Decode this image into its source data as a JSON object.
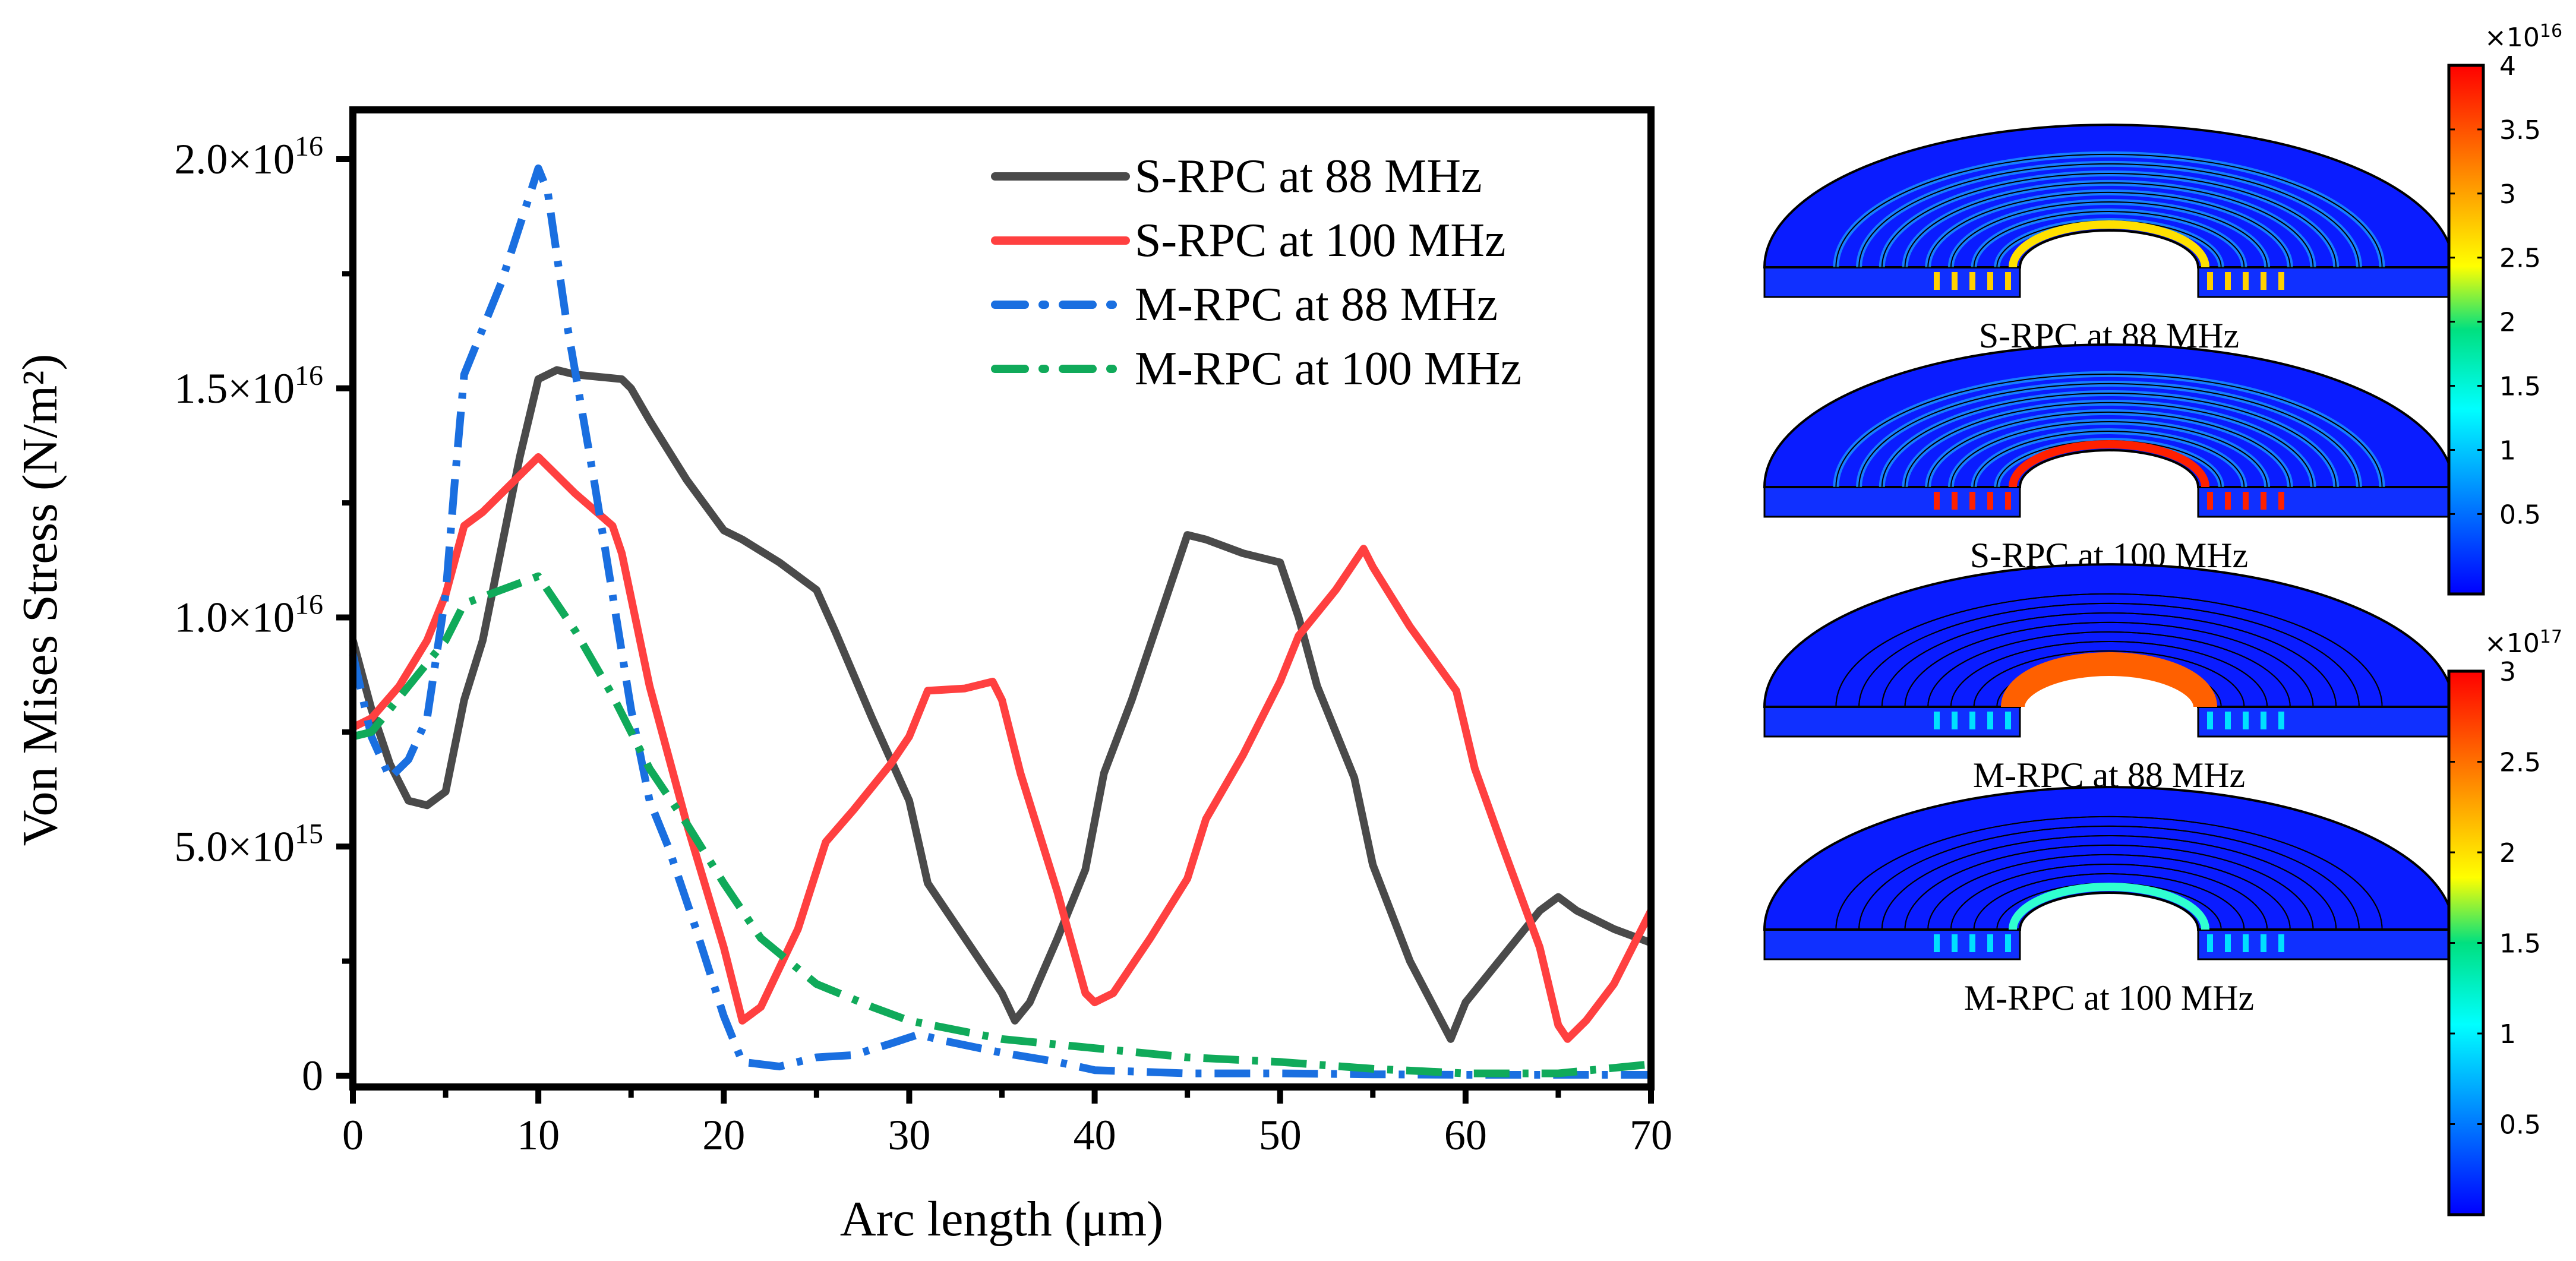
{
  "chart_data": [
    {
      "type": "line",
      "xlabel": "Arc length (μm)",
      "ylabel": "Von Mises Stress (N/m²)",
      "xlim": [
        0,
        70
      ],
      "ylim": [
        0,
        2e+16
      ],
      "x_ticks": [
        "0",
        "10",
        "20",
        "30",
        "40",
        "50",
        "60",
        "70"
      ],
      "y_ticks": [
        {
          "v": 0,
          "m": "0",
          "e": ""
        },
        {
          "v": 5000000000000000.0,
          "m": "5.0×10",
          "e": "15"
        },
        {
          "v": 1e+16,
          "m": "1.0×10",
          "e": "16"
        },
        {
          "v": 1.5e+16,
          "m": "1.5×10",
          "e": "16"
        },
        {
          "v": 2e+16,
          "m": "2.0×10",
          "e": "16"
        }
      ],
      "y_unit_scale": 1000000000000000.0,
      "legend_position": "top-right",
      "series": [
        {
          "name": "S-RPC at 88 MHz",
          "color": "#4a4a4a",
          "dash": "solid",
          "points": [
            [
              0,
              9.5
            ],
            [
              1,
              8
            ],
            [
              2,
              6.8
            ],
            [
              3,
              6
            ],
            [
              4,
              5.9
            ],
            [
              5,
              6.2
            ],
            [
              6,
              8.2
            ],
            [
              7,
              9.5
            ],
            [
              8,
              11.5
            ],
            [
              9,
              13.5
            ],
            [
              10,
              15.2
            ],
            [
              11,
              15.4
            ],
            [
              12,
              15.3
            ],
            [
              14.5,
              15.2
            ],
            [
              15,
              15
            ],
            [
              16,
              14.3
            ],
            [
              18,
              13
            ],
            [
              20,
              11.9
            ],
            [
              21,
              11.7
            ],
            [
              23,
              11.2
            ],
            [
              25,
              10.6
            ],
            [
              26,
              9.7
            ],
            [
              28,
              7.8
            ],
            [
              30,
              6
            ],
            [
              31,
              4.2
            ],
            [
              33,
              3
            ],
            [
              35,
              1.8
            ],
            [
              35.7,
              1.2
            ],
            [
              36.5,
              1.6
            ],
            [
              38,
              3
            ],
            [
              39.5,
              4.5
            ],
            [
              40.5,
              6.6
            ],
            [
              42,
              8.2
            ],
            [
              43.5,
              10
            ],
            [
              45,
              11.8
            ],
            [
              46,
              11.7
            ],
            [
              48,
              11.4
            ],
            [
              50,
              11.2
            ],
            [
              51,
              10
            ],
            [
              52,
              8.5
            ],
            [
              54,
              6.5
            ],
            [
              55,
              4.6
            ],
            [
              57,
              2.5
            ],
            [
              59.2,
              0.8
            ],
            [
              60,
              1.6
            ],
            [
              62,
              2.6
            ],
            [
              64,
              3.6
            ],
            [
              65,
              3.9
            ],
            [
              66,
              3.6
            ],
            [
              68,
              3.2
            ],
            [
              70,
              2.9
            ]
          ]
        },
        {
          "name": "S-RPC at 100 MHz",
          "color": "#ff4040",
          "dash": "solid",
          "points": [
            [
              0,
              7.6
            ],
            [
              1,
              7.8
            ],
            [
              2.5,
              8.5
            ],
            [
              4,
              9.5
            ],
            [
              5,
              10.5
            ],
            [
              6,
              12
            ],
            [
              7,
              12.3
            ],
            [
              8,
              12.7
            ],
            [
              10,
              13.5
            ],
            [
              12,
              12.7
            ],
            [
              14,
              12
            ],
            [
              14.5,
              11.4
            ],
            [
              16,
              8.5
            ],
            [
              18,
              5.5
            ],
            [
              20,
              2.8
            ],
            [
              21,
              1.2
            ],
            [
              22,
              1.5
            ],
            [
              24,
              3.2
            ],
            [
              25.5,
              5.1
            ],
            [
              27,
              5.8
            ],
            [
              29,
              6.8
            ],
            [
              30,
              7.4
            ],
            [
              31,
              8.4
            ],
            [
              33,
              8.45
            ],
            [
              34.5,
              8.6
            ],
            [
              35,
              8.2
            ],
            [
              36,
              6.6
            ],
            [
              38,
              4
            ],
            [
              39.5,
              1.8
            ],
            [
              40,
              1.6
            ],
            [
              41,
              1.8
            ],
            [
              43,
              3
            ],
            [
              45,
              4.3
            ],
            [
              46,
              5.6
            ],
            [
              48,
              7
            ],
            [
              50,
              8.6
            ],
            [
              51,
              9.6
            ],
            [
              53,
              10.6
            ],
            [
              54.5,
              11.5
            ],
            [
              55,
              11.1
            ],
            [
              57,
              9.8
            ],
            [
              59.5,
              8.4
            ],
            [
              60.5,
              6.7
            ],
            [
              62,
              5
            ],
            [
              64,
              2.8
            ],
            [
              65,
              1.1
            ],
            [
              65.5,
              0.8
            ],
            [
              66.5,
              1.2
            ],
            [
              68,
              2
            ],
            [
              70,
              3.6
            ]
          ]
        },
        {
          "name": "M-RPC at 88 MHz",
          "color": "#1a6fe0",
          "dash": "dashdot",
          "points": [
            [
              0,
              9.2
            ],
            [
              1,
              7.4
            ],
            [
              2,
              6.5
            ],
            [
              3,
              6.9
            ],
            [
              4,
              7.8
            ],
            [
              5,
              10.5
            ],
            [
              5.5,
              13
            ],
            [
              6,
              15.3
            ],
            [
              8,
              17.3
            ],
            [
              10,
              19.8
            ],
            [
              10.5,
              19.3
            ],
            [
              11.5,
              16.5
            ],
            [
              13,
              13
            ],
            [
              14,
              10.5
            ],
            [
              15,
              8
            ],
            [
              16,
              6
            ],
            [
              17,
              5
            ],
            [
              18.5,
              3.2
            ],
            [
              20,
              1.3
            ],
            [
              21,
              0.3
            ],
            [
              23,
              0.2
            ],
            [
              25,
              0.4
            ],
            [
              27,
              0.45
            ],
            [
              29,
              0.7
            ],
            [
              30.5,
              0.9
            ],
            [
              32,
              0.75
            ],
            [
              35,
              0.5
            ],
            [
              38,
              0.3
            ],
            [
              40,
              0.12
            ],
            [
              45,
              0.05
            ],
            [
              50,
              0.05
            ],
            [
              55,
              0.03
            ],
            [
              60,
              0.02
            ],
            [
              65,
              0.02
            ],
            [
              70,
              0.02
            ]
          ]
        },
        {
          "name": "M-RPC at 100 MHz",
          "color": "#10aa5a",
          "dash": "dashdot",
          "points": [
            [
              0,
              7.4
            ],
            [
              1,
              7.5
            ],
            [
              3,
              8.5
            ],
            [
              5,
              9.5
            ],
            [
              6,
              10.3
            ],
            [
              8,
              10.6
            ],
            [
              10,
              10.9
            ],
            [
              12,
              9.7
            ],
            [
              14,
              8.3
            ],
            [
              16,
              6.7
            ],
            [
              18,
              5.5
            ],
            [
              20,
              4.2
            ],
            [
              22,
              3
            ],
            [
              25,
              2
            ],
            [
              28,
              1.5
            ],
            [
              30,
              1.2
            ],
            [
              35,
              0.8
            ],
            [
              40,
              0.6
            ],
            [
              45,
              0.4
            ],
            [
              50,
              0.3
            ],
            [
              55,
              0.15
            ],
            [
              60,
              0.05
            ],
            [
              65,
              0.05
            ],
            [
              70,
              0.25
            ]
          ]
        }
      ]
    }
  ],
  "simulations": [
    {
      "label": "S-RPC at 88 MHz",
      "hot": "#ffe000"
    },
    {
      "label": "S-RPC at 100 MHz",
      "hot": "#ff2000"
    },
    {
      "label": "M-RPC at 88 MHz",
      "hot": "#ff6000"
    },
    {
      "label": "M-RPC at 100 MHz",
      "hot": "#30ffd0"
    }
  ],
  "colorbars": [
    {
      "multiplier": "×10",
      "exp": "16",
      "ticks": [
        "4",
        "3.5",
        "3",
        "2.5",
        "2",
        "1.5",
        "1",
        "0.5"
      ],
      "max": 4
    },
    {
      "multiplier": "×10",
      "exp": "17",
      "ticks": [
        "3",
        "2.5",
        "2",
        "1.5",
        "1",
        "0.5"
      ],
      "max": 3
    }
  ]
}
